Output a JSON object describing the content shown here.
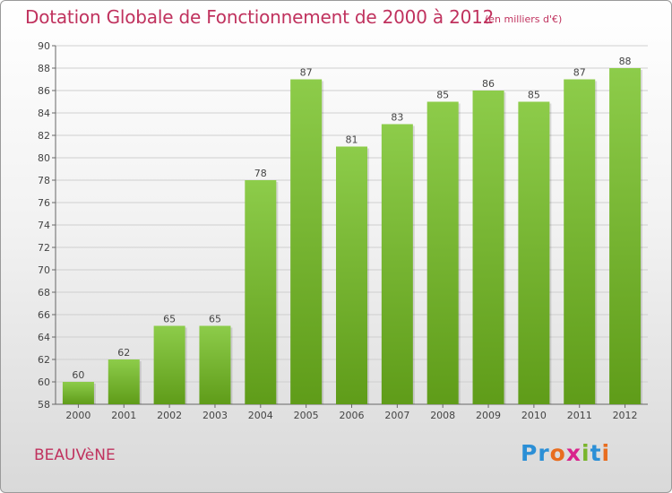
{
  "header": {
    "title": "Dotation Globale de Fonctionnement de 2000 à 2012",
    "unit": "(en milliers d'€)"
  },
  "footer": {
    "commune": "BEAUVèNE",
    "brand_letters": [
      {
        "char": "P",
        "color": "#2b8fd6"
      },
      {
        "char": "r",
        "color": "#2b8fd6"
      },
      {
        "char": "o",
        "color": "#e86d1f"
      },
      {
        "char": "x",
        "color": "#d9238c"
      },
      {
        "char": "i",
        "color": "#79b52b"
      },
      {
        "char": "t",
        "color": "#2b8fd6"
      },
      {
        "char": "i",
        "color": "#e86d1f"
      }
    ]
  },
  "colors": {
    "bar_top": "#8dcc4a",
    "bar_bottom": "#5f9c19",
    "title": "#c0325e"
  },
  "chart_data": {
    "type": "bar",
    "title": "Dotation Globale de Fonctionnement de 2000 à 2012",
    "subtitle": "(en milliers d'€)",
    "categories": [
      "2000",
      "2001",
      "2002",
      "2003",
      "2004",
      "2005",
      "2006",
      "2007",
      "2008",
      "2009",
      "2010",
      "2011",
      "2012"
    ],
    "values": [
      60,
      62,
      65,
      65,
      78,
      87,
      81,
      83,
      85,
      86,
      85,
      87,
      88
    ],
    "ylim": [
      58,
      90
    ],
    "yticks": [
      58,
      60,
      62,
      64,
      66,
      68,
      70,
      72,
      74,
      76,
      78,
      80,
      82,
      84,
      86,
      88,
      90
    ],
    "grid": true,
    "xlabel": "",
    "ylabel": ""
  }
}
